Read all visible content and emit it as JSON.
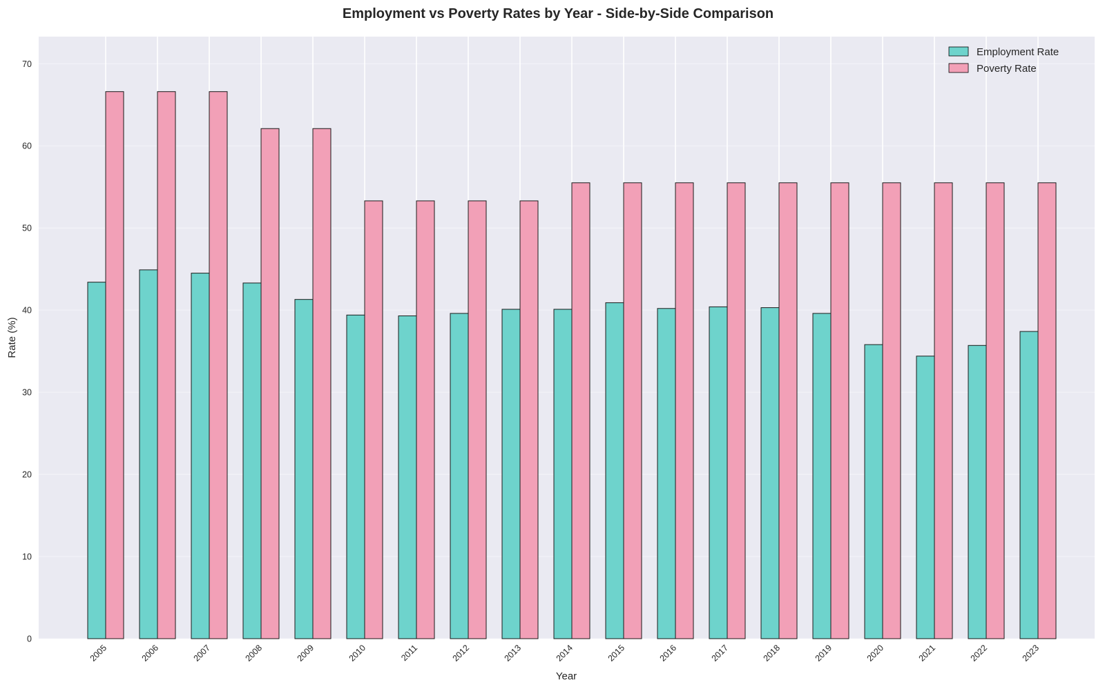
{
  "chart_data": {
    "type": "bar",
    "title": "Employment vs Poverty Rates by Year - Side-by-Side Comparison",
    "xlabel": "Year",
    "ylabel": "Rate (%)",
    "ylim": [
      0,
      73.3
    ],
    "yticks": [
      0,
      10,
      20,
      30,
      40,
      50,
      60,
      70
    ],
    "grid": true,
    "legend_position": "top-right",
    "categories": [
      "2005",
      "2006",
      "2007",
      "2008",
      "2009",
      "2010",
      "2011",
      "2012",
      "2013",
      "2014",
      "2015",
      "2016",
      "2017",
      "2018",
      "2019",
      "2020",
      "2021",
      "2022",
      "2023"
    ],
    "series": [
      {
        "name": "Employment Rate",
        "color": "#6ed3cc",
        "values": [
          43.4,
          44.9,
          44.5,
          43.3,
          41.3,
          39.4,
          39.3,
          39.6,
          40.1,
          40.1,
          40.9,
          40.2,
          40.4,
          40.3,
          39.6,
          35.8,
          34.4,
          35.7,
          37.4
        ]
      },
      {
        "name": "Poverty Rate",
        "color": "#f2a0b7",
        "values": [
          66.6,
          66.6,
          66.6,
          62.1,
          62.1,
          53.3,
          53.3,
          53.3,
          53.3,
          55.5,
          55.5,
          55.5,
          55.5,
          55.5,
          55.5,
          55.5,
          55.5,
          55.5,
          55.5
        ]
      }
    ]
  }
}
